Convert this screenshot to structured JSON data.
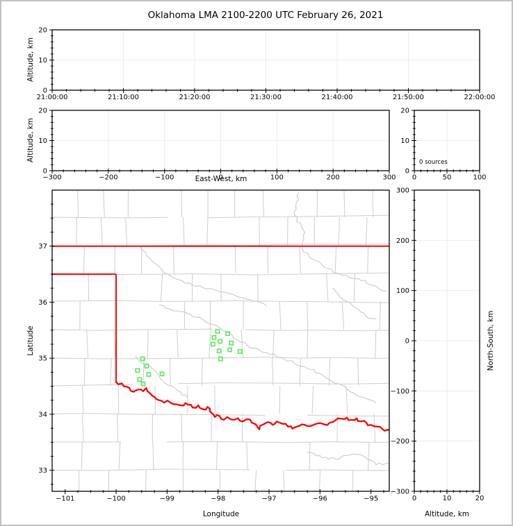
{
  "title": "Oklahoma LMA 2100-2200 UTC February 26, 2021",
  "colors": {
    "state_border": "#ff0000",
    "red_river": "#ff0000",
    "station_marker": "#5ce85c",
    "county_line": "#cdcdcd",
    "river_line": "#c9c9c9",
    "grid_line": "#ececec",
    "axis_line": "#000000",
    "figure_border": "#c2c2c2",
    "background": "#ffffff"
  },
  "panels": {
    "time_height": {
      "ylabel": "Altitude, km",
      "ytick_labels": [
        "0",
        "10",
        "20"
      ],
      "xtick_labels": [
        "21:00:00",
        "21:10:00",
        "21:20:00",
        "21:30:00",
        "21:40:00",
        "21:50:00",
        "22:00:00"
      ]
    },
    "ew_height": {
      "ylabel": "Altitude, km",
      "xlabel": "East-West, km",
      "ytick_labels": [
        "0",
        "10",
        "20"
      ],
      "xtick_labels": [
        "−300",
        "−200",
        "−100",
        "0",
        "100",
        "200",
        "300"
      ]
    },
    "source_histogram": {
      "annotation": "0 sources",
      "xtick_labels": [
        "0",
        "50",
        "100"
      ],
      "ytick_labels": [
        "0",
        "10",
        "20"
      ]
    },
    "map": {
      "xlabel": "Longitude",
      "ylabel": "Latitude",
      "lon_ticks": [
        -101,
        -100,
        -99,
        -98,
        -97,
        -96,
        -95
      ],
      "lon_tick_labels": [
        "−101",
        "−100",
        "−99",
        "−98",
        "−97",
        "−96",
        "−95"
      ],
      "lat_ticks": [
        37,
        36,
        35,
        34,
        33
      ],
      "lat_tick_labels": [
        "37",
        "36",
        "35",
        "34",
        "33"
      ]
    },
    "ns_height": {
      "ylabel_right": "North-South, km",
      "xlabel": "Altitude, km",
      "ytick_labels": [
        "300",
        "200",
        "100",
        "0",
        "−100",
        "−200",
        "−300"
      ],
      "xtick_labels": [
        "0",
        "10",
        "20"
      ]
    }
  },
  "map_features": {
    "state_border": {
      "north_lat": 37.0,
      "panhandle_lat": 36.5,
      "panhandle_lon": -100.0,
      "panhandle_south_lat": 34.57
    },
    "red_river": [
      [
        -100.0,
        34.57
      ],
      [
        -99.85,
        34.5
      ],
      [
        -99.66,
        34.4
      ],
      [
        -99.56,
        34.44
      ],
      [
        -99.47,
        34.41
      ],
      [
        -99.41,
        34.47
      ],
      [
        -99.33,
        34.37
      ],
      [
        -99.25,
        34.31
      ],
      [
        -99.11,
        34.24
      ],
      [
        -98.94,
        34.21
      ],
      [
        -98.74,
        34.16
      ],
      [
        -98.64,
        34.2
      ],
      [
        -98.5,
        34.12
      ],
      [
        -98.39,
        34.16
      ],
      [
        -98.3,
        34.09
      ],
      [
        -98.21,
        34.13
      ],
      [
        -98.16,
        34.05
      ],
      [
        -98.06,
        33.95
      ],
      [
        -97.97,
        33.97
      ],
      [
        -97.89,
        33.9
      ],
      [
        -97.82,
        33.95
      ],
      [
        -97.72,
        33.9
      ],
      [
        -97.61,
        33.93
      ],
      [
        -97.52,
        33.87
      ],
      [
        -97.44,
        33.91
      ],
      [
        -97.34,
        33.85
      ],
      [
        -97.26,
        33.82
      ],
      [
        -97.19,
        33.73
      ],
      [
        -97.11,
        33.82
      ],
      [
        -97.03,
        33.86
      ],
      [
        -96.93,
        33.81
      ],
      [
        -96.85,
        33.87
      ],
      [
        -96.74,
        33.83
      ],
      [
        -96.63,
        33.78
      ],
      [
        -96.54,
        33.74
      ],
      [
        -96.46,
        33.78
      ],
      [
        -96.36,
        33.82
      ],
      [
        -96.25,
        33.79
      ],
      [
        -96.13,
        33.81
      ],
      [
        -96.02,
        33.84
      ],
      [
        -95.92,
        33.82
      ],
      [
        -95.81,
        33.85
      ],
      [
        -95.7,
        33.89
      ],
      [
        -95.58,
        33.92
      ],
      [
        -95.47,
        33.94
      ],
      [
        -95.38,
        33.9
      ],
      [
        -95.28,
        33.93
      ],
      [
        -95.19,
        33.87
      ],
      [
        -95.09,
        33.85
      ],
      [
        -95.0,
        33.81
      ],
      [
        -94.89,
        33.78
      ],
      [
        -94.78,
        33.74
      ],
      [
        -94.62,
        33.7
      ]
    ],
    "rivers": [
      [
        [
          -99.52,
          36.97
        ],
        [
          -99.25,
          36.7
        ],
        [
          -99.05,
          36.52
        ],
        [
          -98.7,
          36.38
        ],
        [
          -98.3,
          36.26
        ],
        [
          -97.95,
          36.18
        ],
        [
          -97.55,
          36.08
        ],
        [
          -97.25,
          36.02
        ],
        [
          -97.05,
          35.93
        ]
      ],
      [
        [
          -96.42,
          37.95
        ],
        [
          -96.5,
          37.55
        ],
        [
          -96.3,
          37.25
        ],
        [
          -96.35,
          36.95
        ],
        [
          -96.1,
          36.75
        ],
        [
          -95.85,
          36.6
        ],
        [
          -95.55,
          36.48
        ],
        [
          -95.25,
          36.42
        ],
        [
          -94.95,
          36.3
        ],
        [
          -94.7,
          36.2
        ]
      ],
      [
        [
          -99.15,
          35.95
        ],
        [
          -98.95,
          35.88
        ],
        [
          -98.66,
          35.83
        ],
        [
          -98.43,
          35.73
        ],
        [
          -98.1,
          35.6
        ],
        [
          -97.85,
          35.48
        ],
        [
          -97.62,
          35.32
        ],
        [
          -97.3,
          35.18
        ],
        [
          -97.05,
          35.1
        ],
        [
          -96.7,
          34.98
        ],
        [
          -96.3,
          34.85
        ],
        [
          -95.95,
          34.7
        ],
        [
          -95.65,
          34.55
        ],
        [
          -95.4,
          34.4
        ],
        [
          -95.15,
          34.3
        ],
        [
          -94.9,
          34.2
        ]
      ],
      [
        [
          -99.62,
          35.03
        ],
        [
          -99.45,
          34.9
        ],
        [
          -99.32,
          34.84
        ],
        [
          -99.2,
          34.74
        ],
        [
          -99.12,
          34.62
        ],
        [
          -98.98,
          34.52
        ],
        [
          -98.8,
          34.42
        ],
        [
          -98.6,
          34.3
        ]
      ],
      [
        [
          -96.25,
          33.32
        ],
        [
          -95.95,
          33.22
        ],
        [
          -95.7,
          33.2
        ],
        [
          -95.4,
          33.28
        ],
        [
          -95.16,
          33.26
        ],
        [
          -94.9,
          33.1
        ],
        [
          -94.64,
          33.13
        ]
      ],
      [
        [
          -95.75,
          36.25
        ],
        [
          -95.55,
          36.05
        ],
        [
          -95.3,
          35.9
        ],
        [
          -95.1,
          35.75
        ],
        [
          -94.9,
          35.7
        ]
      ]
    ]
  },
  "chart_data": [
    {
      "panel": "altitude-vs-time",
      "type": "scatter",
      "title": "Oklahoma LMA 2100-2200 UTC February 26, 2021",
      "ylabel": "Altitude, km",
      "ylim": [
        0,
        20
      ],
      "xtick_labels": [
        "21:00:00",
        "21:10:00",
        "21:20:00",
        "21:30:00",
        "21:40:00",
        "21:50:00",
        "22:00:00"
      ],
      "grid": true,
      "points": []
    },
    {
      "panel": "altitude-vs-eastwest",
      "type": "scatter",
      "xlabel": "East-West, km",
      "ylabel": "Altitude, km",
      "xlim": [
        -300,
        300
      ],
      "ylim": [
        0,
        20
      ],
      "grid": true,
      "points": []
    },
    {
      "panel": "source-count-histogram",
      "type": "bar",
      "xlim": [
        0,
        100
      ],
      "ylim": [
        0,
        20
      ],
      "annotation": "0 sources",
      "values": [],
      "grid": true
    },
    {
      "panel": "map-plan-view",
      "type": "scatter",
      "xlabel": "Longitude",
      "ylabel": "Latitude",
      "xlim": [
        -101.25,
        -94.62
      ],
      "ylim": [
        32.63,
        38.0
      ],
      "grid": false,
      "source_points": [],
      "station_markers_lonlat": [
        [
          -99.48,
          34.99
        ],
        [
          -99.4,
          34.86
        ],
        [
          -99.58,
          34.78
        ],
        [
          -99.36,
          34.71
        ],
        [
          -99.1,
          34.72
        ],
        [
          -99.54,
          34.62
        ],
        [
          -99.47,
          34.54
        ],
        [
          -98.01,
          35.48
        ],
        [
          -97.81,
          35.44
        ],
        [
          -98.08,
          35.37
        ],
        [
          -97.96,
          35.3
        ],
        [
          -98.1,
          35.25
        ],
        [
          -97.74,
          35.27
        ],
        [
          -97.98,
          35.13
        ],
        [
          -97.77,
          35.15
        ],
        [
          -97.57,
          35.12
        ],
        [
          -97.95,
          34.99
        ]
      ]
    },
    {
      "panel": "northsouth-vs-altitude",
      "type": "scatter",
      "xlabel": "Altitude, km",
      "ylabel": "North-South, km",
      "xlim": [
        0,
        20
      ],
      "ylim": [
        -300,
        300
      ],
      "grid": true,
      "points": []
    }
  ]
}
